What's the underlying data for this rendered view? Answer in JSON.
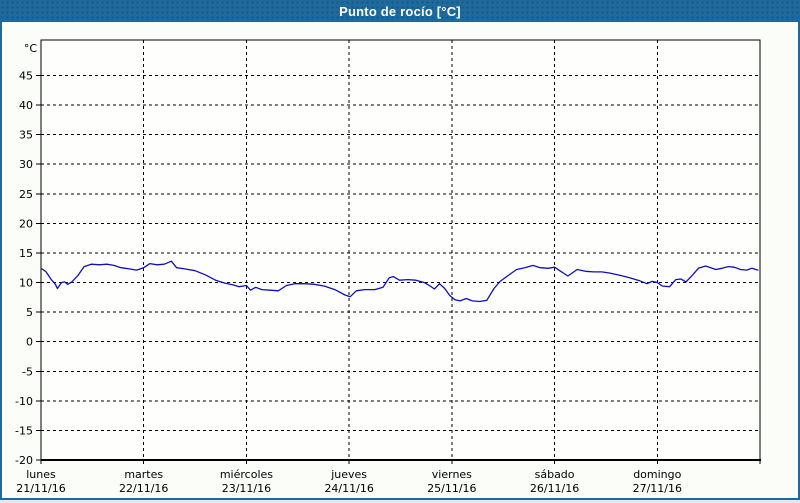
{
  "window": {
    "title": "Punto de rocío [°C]",
    "titlebar_color": "#1e6a9c",
    "border_color": "#1e6a9c",
    "background_color": "#fbfdf9"
  },
  "chart_data": {
    "type": "line",
    "title": "Punto de rocío [°C]",
    "unit_label": "°C",
    "ylabel": "",
    "xlabel": "",
    "ylim": [
      -20,
      51
    ],
    "yticks": [
      -20,
      -15,
      -10,
      -5,
      0,
      5,
      10,
      15,
      20,
      25,
      30,
      35,
      40,
      45
    ],
    "grid": "dashed",
    "legend": "none",
    "line_color": "#1010b8",
    "axis_color": "#000000",
    "days": [
      {
        "name": "lunes",
        "date": "21/11/16"
      },
      {
        "name": "martes",
        "date": "22/11/16"
      },
      {
        "name": "miércoles",
        "date": "23/11/16"
      },
      {
        "name": "jueves",
        "date": "24/11/16"
      },
      {
        "name": "viernes",
        "date": "25/11/16"
      },
      {
        "name": "sábado",
        "date": "26/11/16"
      },
      {
        "name": "domingo",
        "date": "27/11/16"
      }
    ],
    "series_name": "Punto de rocío",
    "points": [
      [
        0.01,
        12.3
      ],
      [
        0.05,
        11.8
      ],
      [
        0.1,
        10.5
      ],
      [
        0.14,
        9.7
      ],
      [
        0.16,
        9.0
      ],
      [
        0.2,
        10.0
      ],
      [
        0.23,
        10.1
      ],
      [
        0.26,
        9.7
      ],
      [
        0.3,
        10.1
      ],
      [
        0.36,
        11.2
      ],
      [
        0.42,
        12.7
      ],
      [
        0.49,
        13.1
      ],
      [
        0.57,
        13.0
      ],
      [
        0.64,
        13.1
      ],
      [
        0.71,
        12.9
      ],
      [
        0.78,
        12.5
      ],
      [
        0.86,
        12.3
      ],
      [
        0.93,
        12.1
      ],
      [
        1.0,
        12.5
      ],
      [
        1.06,
        13.2
      ],
      [
        1.13,
        13.0
      ],
      [
        1.2,
        13.1
      ],
      [
        1.27,
        13.6
      ],
      [
        1.32,
        12.5
      ],
      [
        1.4,
        12.3
      ],
      [
        1.5,
        12.0
      ],
      [
        1.6,
        11.3
      ],
      [
        1.7,
        10.4
      ],
      [
        1.79,
        9.9
      ],
      [
        1.87,
        9.6
      ],
      [
        1.93,
        9.3
      ],
      [
        2.0,
        9.5
      ],
      [
        2.04,
        8.7
      ],
      [
        2.09,
        9.2
      ],
      [
        2.15,
        8.8
      ],
      [
        2.23,
        8.7
      ],
      [
        2.31,
        8.6
      ],
      [
        2.39,
        9.5
      ],
      [
        2.47,
        9.8
      ],
      [
        2.57,
        9.8
      ],
      [
        2.66,
        9.7
      ],
      [
        2.76,
        9.4
      ],
      [
        2.86,
        8.8
      ],
      [
        2.96,
        7.9
      ],
      [
        3.01,
        7.6
      ],
      [
        3.07,
        8.6
      ],
      [
        3.15,
        8.8
      ],
      [
        3.25,
        8.8
      ],
      [
        3.33,
        9.2
      ],
      [
        3.39,
        10.8
      ],
      [
        3.43,
        11.0
      ],
      [
        3.49,
        10.4
      ],
      [
        3.57,
        10.5
      ],
      [
        3.65,
        10.4
      ],
      [
        3.73,
        10.0
      ],
      [
        3.79,
        9.4
      ],
      [
        3.83,
        8.9
      ],
      [
        3.88,
        9.8
      ],
      [
        3.93,
        9.0
      ],
      [
        3.98,
        7.8
      ],
      [
        4.03,
        7.1
      ],
      [
        4.08,
        6.9
      ],
      [
        4.14,
        7.3
      ],
      [
        4.2,
        6.9
      ],
      [
        4.27,
        6.8
      ],
      [
        4.34,
        7.0
      ],
      [
        4.41,
        9.0
      ],
      [
        4.47,
        10.2
      ],
      [
        4.55,
        11.2
      ],
      [
        4.63,
        12.2
      ],
      [
        4.71,
        12.5
      ],
      [
        4.79,
        12.9
      ],
      [
        4.86,
        12.5
      ],
      [
        4.94,
        12.4
      ],
      [
        5.0,
        12.6
      ],
      [
        5.06,
        11.9
      ],
      [
        5.13,
        11.1
      ],
      [
        5.22,
        12.2
      ],
      [
        5.3,
        11.9
      ],
      [
        5.38,
        11.8
      ],
      [
        5.46,
        11.8
      ],
      [
        5.54,
        11.6
      ],
      [
        5.64,
        11.2
      ],
      [
        5.73,
        10.8
      ],
      [
        5.83,
        10.3
      ],
      [
        5.9,
        9.8
      ],
      [
        5.95,
        10.2
      ],
      [
        6.0,
        10.0
      ],
      [
        6.05,
        9.4
      ],
      [
        6.12,
        9.3
      ],
      [
        6.18,
        10.5
      ],
      [
        6.23,
        10.6
      ],
      [
        6.28,
        10.1
      ],
      [
        6.34,
        11.2
      ],
      [
        6.4,
        12.4
      ],
      [
        6.47,
        12.8
      ],
      [
        6.52,
        12.5
      ],
      [
        6.57,
        12.2
      ],
      [
        6.63,
        12.4
      ],
      [
        6.69,
        12.7
      ],
      [
        6.75,
        12.6
      ],
      [
        6.81,
        12.2
      ],
      [
        6.87,
        12.1
      ],
      [
        6.92,
        12.4
      ],
      [
        6.98,
        12.1
      ]
    ]
  }
}
